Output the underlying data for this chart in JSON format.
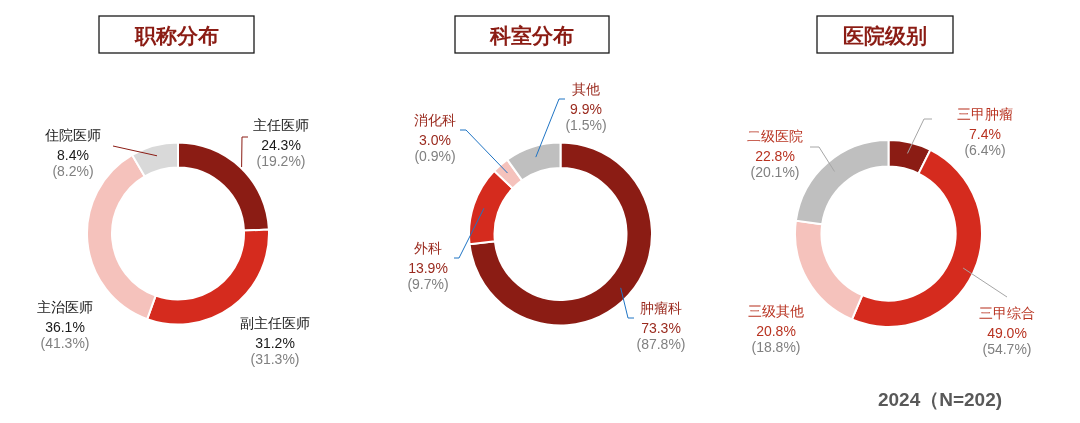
{
  "chart_data": [
    {
      "type": "donut",
      "title": "职称分布",
      "categories": [
        "主任医师",
        "副主任医师",
        "主治医师",
        "住院医师"
      ],
      "values": [
        24.3,
        31.2,
        36.1,
        8.4
      ],
      "colors": [
        "#8b1c14",
        "#d52b1e",
        "#f5c2bc",
        "#d9d9d9"
      ],
      "value_labels": [
        "24.3%\n(19.2%)",
        "31.2%\n(31.3%)",
        "36.1%\n(41.3%)",
        "8.4%\n(8.2%)"
      ]
    },
    {
      "type": "donut",
      "title": "科室分布",
      "categories": [
        "肿瘤科",
        "外科",
        "消化科",
        "其他"
      ],
      "values": [
        73.3,
        13.9,
        3.0,
        9.9
      ],
      "colors": [
        "#8b1c14",
        "#d52b1e",
        "#f5c2bc",
        "#bfbfbf"
      ],
      "value_labels": [
        "73.3%\n(87.8%)",
        "13.9%\n(9.7%)",
        "3.0%\n(0.9%)",
        "9.9%\n(1.5%)"
      ]
    },
    {
      "type": "donut",
      "title": "医院级别",
      "categories": [
        "三甲肿瘤",
        "三甲综合",
        "三级其他",
        "二级医院"
      ],
      "values": [
        7.4,
        49.0,
        20.8,
        22.8
      ],
      "colors": [
        "#8b1c14",
        "#d52b1e",
        "#f5c2bc",
        "#bfbfbf"
      ],
      "value_labels": [
        "7.4%\n(6.4%)",
        "49.0%\n(54.7%)",
        "20.8%\n(18.8%)",
        "22.8%\n(20.1%)"
      ],
      "annotations": [
        "2024（N=202)"
      ]
    }
  ]
}
